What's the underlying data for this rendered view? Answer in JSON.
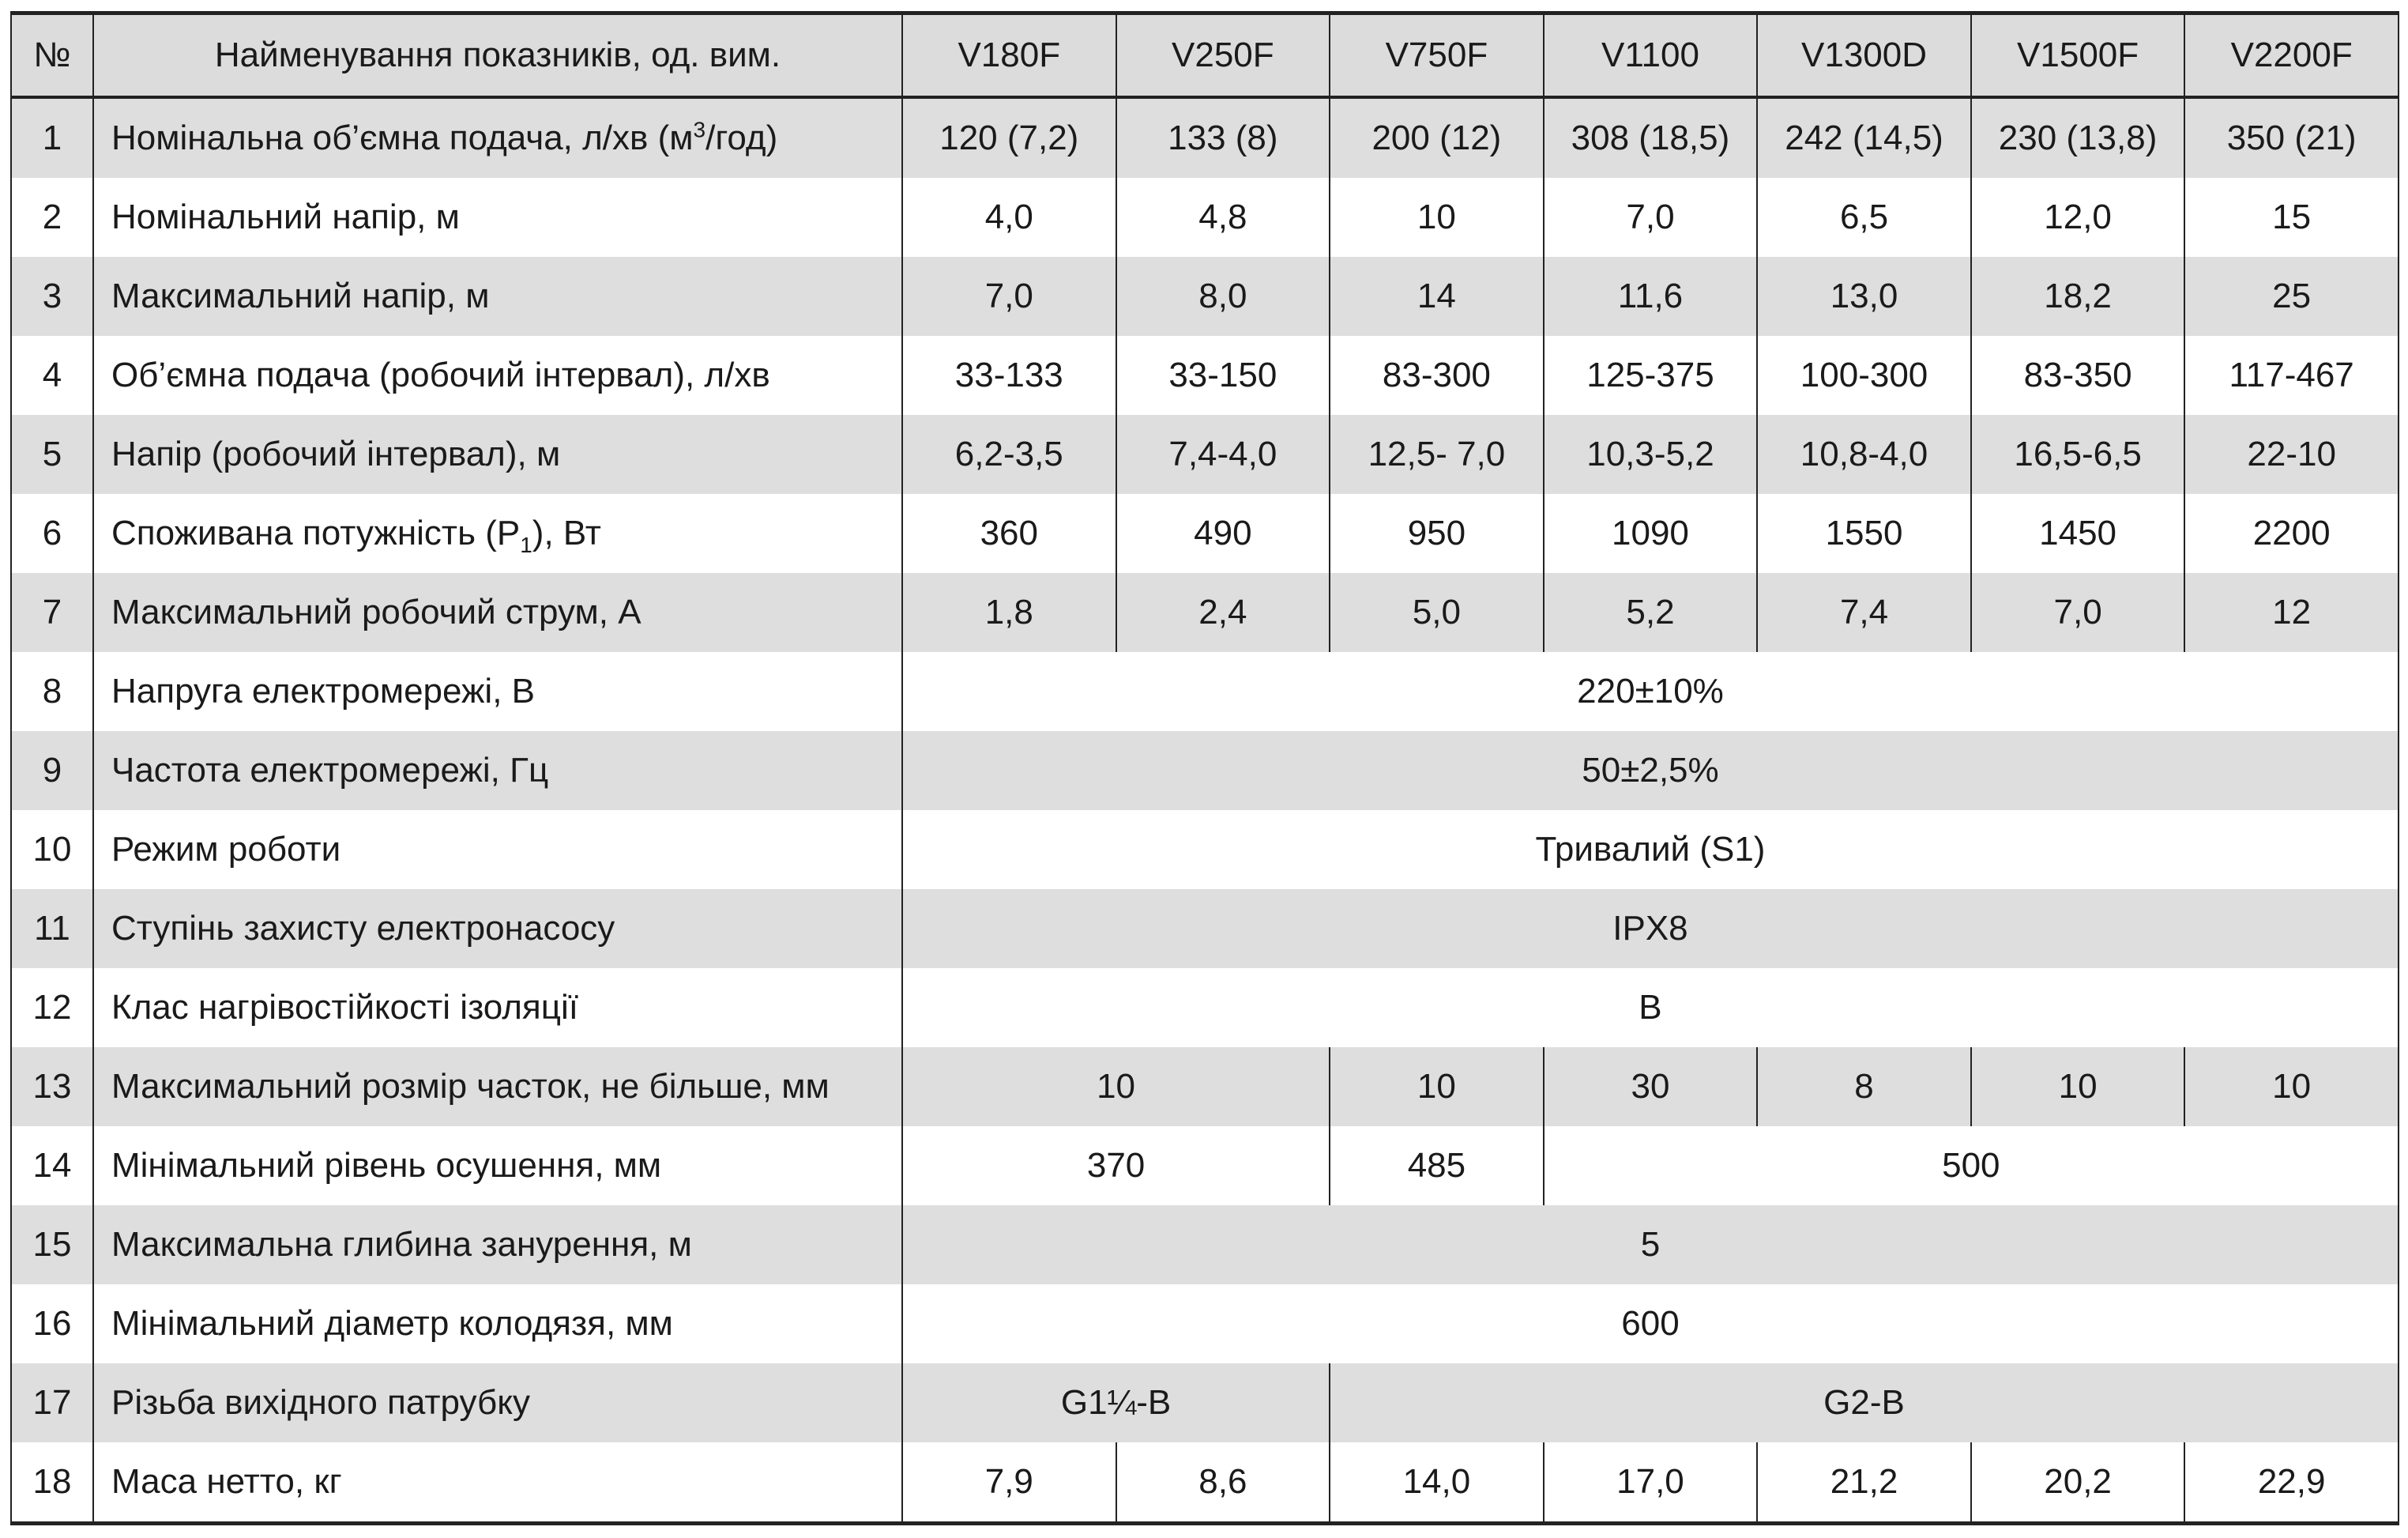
{
  "header": {
    "num": "№",
    "name": "Найменування показників, од. вим.",
    "models": [
      "V180F",
      "V250F",
      "V750F",
      "V1100",
      "V1300D",
      "V1500F",
      "V2200F"
    ]
  },
  "rows": [
    {
      "num": "1",
      "name_pre": "Номінальна об’ємна подача, л/хв (м",
      "name_sup": "3",
      "name_post": "/год)",
      "values": [
        "120 (7,2)",
        "133 (8)",
        "200 (12)",
        "308 (18,5)",
        "242 (14,5)",
        "230 (13,8)",
        "350 (21)"
      ]
    },
    {
      "num": "2",
      "name": "Номінальний напір, м",
      "values": [
        "4,0",
        "4,8",
        "10",
        "7,0",
        "6,5",
        "12,0",
        "15"
      ]
    },
    {
      "num": "3",
      "name": "Максимальний напір, м",
      "values": [
        "7,0",
        "8,0",
        "14",
        "11,6",
        "13,0",
        "18,2",
        "25"
      ]
    },
    {
      "num": "4",
      "name": "Об’ємна подача (робочий інтервал), л/хв",
      "values": [
        "33-133",
        "33-150",
        "83-300",
        "125-375",
        "100-300",
        "83-350",
        "117-467"
      ]
    },
    {
      "num": "5",
      "name": "Напір (робочий інтервал), м",
      "values": [
        "6,2-3,5",
        "7,4-4,0",
        "12,5- 7,0",
        "10,3-5,2",
        "10,8-4,0",
        "16,5-6,5",
        "22-10"
      ]
    },
    {
      "num": "6",
      "name_pre": "Споживана потужність (P",
      "name_sub": "1",
      "name_post": "), Вт",
      "values": [
        "360",
        "490",
        "950",
        "1090",
        "1550",
        "1450",
        "2200"
      ]
    },
    {
      "num": "7",
      "name": "Максимальний робочий струм, А",
      "values": [
        "1,8",
        "2,4",
        "5,0",
        "5,2",
        "7,4",
        "7,0",
        "12"
      ]
    },
    {
      "num": "8",
      "name": "Напруга електромережі, В",
      "value": "220±10%"
    },
    {
      "num": "9",
      "name": "Частота електромережі, Гц",
      "value": "50±2,5%"
    },
    {
      "num": "10",
      "name": "Режим роботи",
      "value": "Тривалий (S1)"
    },
    {
      "num": "11",
      "name": "Ступінь захисту електронасосу",
      "value": "IPX8"
    },
    {
      "num": "12",
      "name": "Клас нагрівостійкості ізоляції",
      "value": "B"
    },
    {
      "num": "13",
      "name": "Максимальний розмір часток, не більше, мм",
      "values": [
        "10",
        "10",
        "30",
        "8",
        "10",
        "10"
      ]
    },
    {
      "num": "14",
      "name": "Мінімальний рівень осушення, мм",
      "values": [
        "370",
        "485",
        "500"
      ]
    },
    {
      "num": "15",
      "name": "Максимальна глибина занурення, м",
      "value": "5"
    },
    {
      "num": "16",
      "name": "Мінімальний діаметр колодязя, мм",
      "value": "600"
    },
    {
      "num": "17",
      "name": "Різьба вихідного патрубку",
      "values": [
        "G1¼-B",
        "G2-B"
      ]
    },
    {
      "num": "18",
      "name": "Маса нетто, кг",
      "values": [
        "7,9",
        "8,6",
        "14,0",
        "17,0",
        "21,2",
        "20,2",
        "22,9"
      ]
    }
  ]
}
